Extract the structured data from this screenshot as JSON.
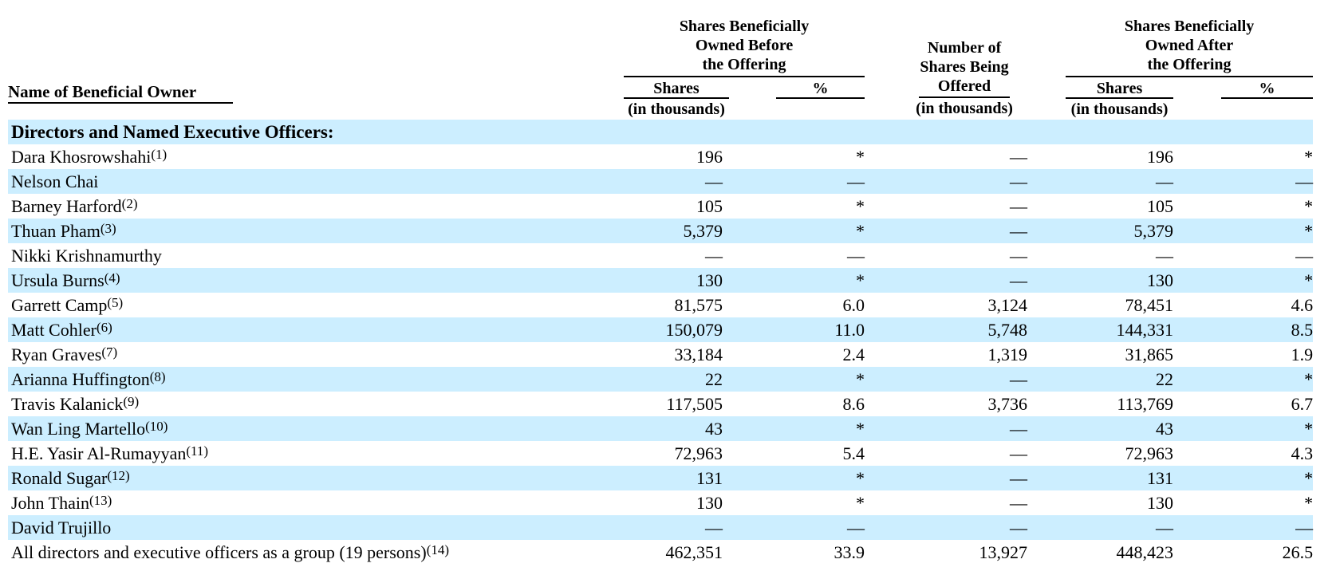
{
  "page": {
    "background": "#ffffff",
    "row_highlight": "#cceeff",
    "text_color": "#000000"
  },
  "table": {
    "name_column_header": "Name of Beneficial Owner",
    "groups": {
      "before": {
        "title_lines": [
          "Shares Beneficially",
          "Owned Before",
          "the Offering"
        ]
      },
      "offered": {
        "title_lines": [
          "Number of",
          "Shares Being",
          "Offered"
        ]
      },
      "after": {
        "title_lines": [
          "Shares Beneficially",
          "Owned After",
          "the Offering"
        ]
      }
    },
    "subheaders": {
      "shares": "Shares",
      "percent": "%",
      "unit": "(in thousands)"
    },
    "section_header": "Directors and Named Executive Officers:",
    "rows": [
      {
        "name": "Dara Khosrowshahi",
        "footnote": "(1)",
        "shares_before": "196",
        "pct_before": "*",
        "offered": "—",
        "shares_after": "196",
        "pct_after": "*"
      },
      {
        "name": "Nelson Chai",
        "footnote": "",
        "shares_before": "—",
        "pct_before": "—",
        "offered": "—",
        "shares_after": "—",
        "pct_after": "—"
      },
      {
        "name": "Barney Harford",
        "footnote": "(2)",
        "shares_before": "105",
        "pct_before": "*",
        "offered": "—",
        "shares_after": "105",
        "pct_after": "*"
      },
      {
        "name": "Thuan Pham",
        "footnote": "(3)",
        "shares_before": "5,379",
        "pct_before": "*",
        "offered": "—",
        "shares_after": "5,379",
        "pct_after": "*"
      },
      {
        "name": "Nikki Krishnamurthy",
        "footnote": "",
        "shares_before": "—",
        "pct_before": "—",
        "offered": "—",
        "shares_after": "—",
        "pct_after": "—"
      },
      {
        "name": "Ursula Burns",
        "footnote": "(4)",
        "shares_before": "130",
        "pct_before": "*",
        "offered": "—",
        "shares_after": "130",
        "pct_after": "*"
      },
      {
        "name": "Garrett Camp",
        "footnote": "(5)",
        "shares_before": "81,575",
        "pct_before": "6.0",
        "offered": "3,124",
        "shares_after": "78,451",
        "pct_after": "4.6"
      },
      {
        "name": "Matt Cohler",
        "footnote": "(6)",
        "shares_before": "150,079",
        "pct_before": "11.0",
        "offered": "5,748",
        "shares_after": "144,331",
        "pct_after": "8.5"
      },
      {
        "name": "Ryan Graves",
        "footnote": "(7)",
        "shares_before": "33,184",
        "pct_before": "2.4",
        "offered": "1,319",
        "shares_after": "31,865",
        "pct_after": "1.9"
      },
      {
        "name": "Arianna Huffington",
        "footnote": "(8)",
        "shares_before": "22",
        "pct_before": "*",
        "offered": "—",
        "shares_after": "22",
        "pct_after": "*"
      },
      {
        "name": "Travis Kalanick",
        "footnote": "(9)",
        "shares_before": "117,505",
        "pct_before": "8.6",
        "offered": "3,736",
        "shares_after": "113,769",
        "pct_after": "6.7"
      },
      {
        "name": "Wan Ling Martello",
        "footnote": "(10)",
        "shares_before": "43",
        "pct_before": "*",
        "offered": "—",
        "shares_after": "43",
        "pct_after": "*"
      },
      {
        "name": "H.E. Yasir Al-Rumayyan",
        "footnote": "(11)",
        "shares_before": "72,963",
        "pct_before": "5.4",
        "offered": "—",
        "shares_after": "72,963",
        "pct_after": "4.3"
      },
      {
        "name": "Ronald Sugar",
        "footnote": "(12)",
        "shares_before": "131",
        "pct_before": "*",
        "offered": "—",
        "shares_after": "131",
        "pct_after": "*"
      },
      {
        "name": "John Thain",
        "footnote": "(13)",
        "shares_before": "130",
        "pct_before": "*",
        "offered": "—",
        "shares_after": "130",
        "pct_after": "*"
      },
      {
        "name": "David Trujillo",
        "footnote": "",
        "shares_before": "—",
        "pct_before": "—",
        "offered": "—",
        "shares_after": "—",
        "pct_after": "—"
      },
      {
        "name": "All directors and executive officers as a group (19 persons)",
        "footnote": "(14)",
        "shares_before": "462,351",
        "pct_before": "33.9",
        "offered": "13,927",
        "shares_after": "448,423",
        "pct_after": "26.5"
      }
    ]
  }
}
